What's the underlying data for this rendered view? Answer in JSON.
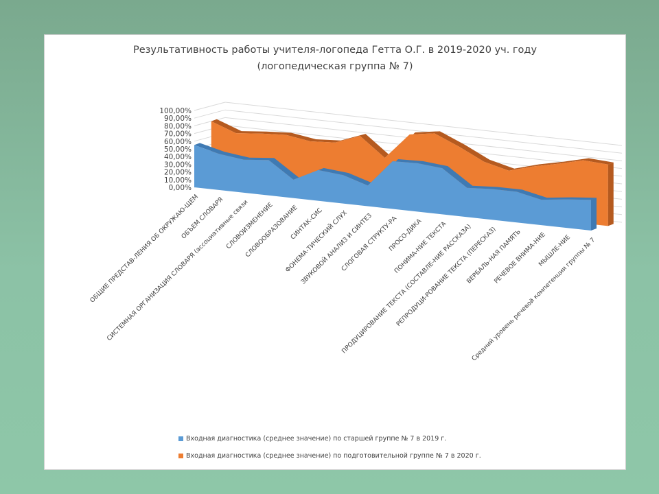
{
  "colors": {
    "series1": "#5b9bd5",
    "series2": "#ed7d31",
    "series2_side": "#b55a1f",
    "series1_side": "#3f7ab3",
    "grid": "#d9d9d9"
  },
  "chart_data": {
    "type": "area",
    "title_line1": "Результативность работы учителя-логопеда Гетта О.Г.  в 2019-2020 уч. году",
    "title_line2": "(логопедическая группа № 7)",
    "ylim": [
      0,
      1
    ],
    "yticks": [
      "0,00%",
      "10,00%",
      "20,00%",
      "30,00%",
      "40,00%",
      "50,00%",
      "60,00%",
      "70,00%",
      "80,00%",
      "90,00%",
      "100,00%"
    ],
    "categories": [
      "ОБЩИЕ ПРЕДСТАВ-ЛЕНИЯ ОБ ОКРУЖАЮ-ЩЕМ",
      "ОБЪЕМ СЛОВАРЯ",
      "СИСТЕМНАЯ ОРГАНИЗАЦИЯ СЛОВАРЯ (ассоциативные связи",
      "СЛОВОИЗМЕНЕНИЕ",
      "СЛОВООБРАЗОВАНИЕ",
      "СИНТАК-СИС",
      "ФОНЕМА-ТИЧЕСКИЙ СЛУХ",
      "ЗВУКОВОЙ АНАЛИЗ И СИНТЕЗ",
      "СЛОГОВАЯ СТРУКТУ-РА",
      "ПРОСО-ДИКА",
      "ПОНИМА-НИЕ ТЕКСТА",
      "ПРОДУЦИРОВАНИЕ ТЕКСТА (СОСТАВЛЕ-НИЕ РАССКАЗА)",
      "РЕПРОДУЦИ-РОВАНИЕ ТЕКСТА (ПЕРЕСКАЗ)",
      "ВЕРБАЛЬ-НАЯ ПАМЯТЬ",
      "РЕЧЕВОЕ ВНИМА-НИЕ",
      "МЫШЛЕ-НИЕ",
      "Средний уровень речевой компетенции группы № 7"
    ],
    "series": [
      {
        "name": "Входная диагностика (среднее значение) по старшей группе № 7 в 2019 г.",
        "values": [
          0.55,
          0.47,
          0.43,
          0.46,
          0.24,
          0.4,
          0.37,
          0.27,
          0.62,
          0.63,
          0.6,
          0.38,
          0.4,
          0.4,
          0.33,
          0.37,
          0.4
        ]
      },
      {
        "name": "Входная диагностика (среднее значение) по подготовительной группе № 7 в 2020 г.",
        "values": [
          0.8,
          0.68,
          0.71,
          0.73,
          0.68,
          0.7,
          0.82,
          0.57,
          0.91,
          0.96,
          0.82,
          0.66,
          0.58,
          0.67,
          0.74,
          0.82,
          0.8
        ]
      }
    ],
    "legend_position": "bottom",
    "grid": true
  }
}
